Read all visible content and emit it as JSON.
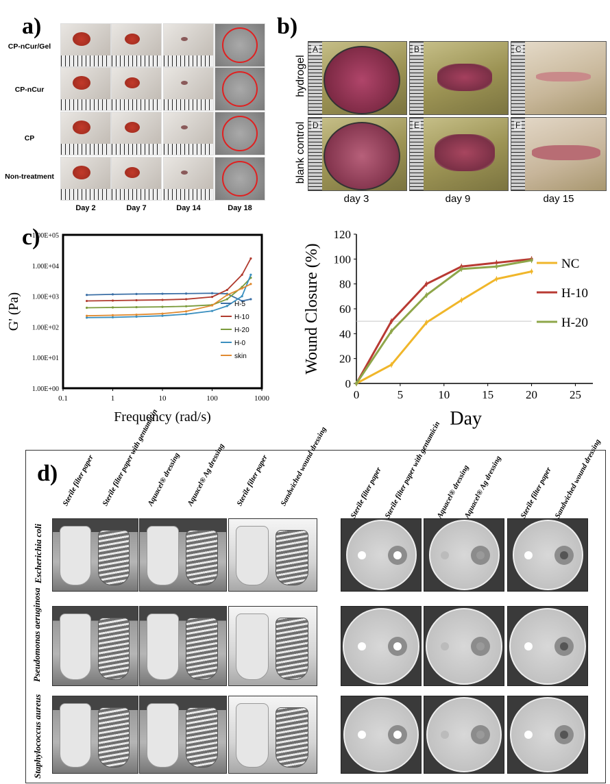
{
  "panel_labels": {
    "a": "a)",
    "b": "b)",
    "c": "c)",
    "d": "d)"
  },
  "panel_a": {
    "rows": [
      "CP-nCur/Gel",
      "CP-nCur",
      "CP",
      "Non-treatment"
    ],
    "days": [
      "Day 2",
      "Day 7",
      "Day 14",
      "Day 18"
    ]
  },
  "panel_b": {
    "rows": [
      "hydrogel",
      "blank control"
    ],
    "days": [
      "day 3",
      "day 9",
      "day 15"
    ],
    "letters": [
      "A",
      "B",
      "C",
      "D",
      "E",
      "F"
    ]
  },
  "panel_d": {
    "tube_headers": [
      "Sterile filter paper",
      "Sterile filter paper with gentamicin",
      "Aquacel® dressing",
      "Aquacel® Ag dressing",
      "Sterile filter paper",
      "Sandwiched wound dressing"
    ],
    "plate_headers": [
      "Sterile filter paper",
      "Sterile filter paper with gentamicin",
      "Aquacel® dressing",
      "Aquacel® Ag dressing",
      "Sterile filter paper",
      "Sandwiched wound dressing"
    ],
    "organisms": [
      "Escherichia coli",
      "Pseudomonas aeruginosa",
      "Staphylococcus aureus"
    ]
  },
  "chart_data": [
    {
      "type": "line",
      "yscale": "log",
      "xscale": "log",
      "xlabel": "Frequency (rad/s)",
      "ylabel": "G' (Pa)",
      "x_ticks": [
        "0.1",
        "1",
        "10",
        "100",
        "1000"
      ],
      "y_ticks": [
        "1.00E+00",
        "1.00E+01",
        "1.00E+02",
        "1.00E+03",
        "1.00E+04",
        "1.00E+05"
      ],
      "xlim": [
        0.1,
        1000
      ],
      "ylim": [
        1,
        100000
      ],
      "legend": [
        "H-5",
        "H-10",
        "H-20",
        "H-0",
        "skin"
      ],
      "colors": {
        "H-5": "#3a6ea5",
        "H-10": "#b03a2e",
        "H-20": "#7a9a3a",
        "H-0": "#3a8fbf",
        "skin": "#e08a30"
      },
      "series": [
        {
          "name": "H-5",
          "x": [
            0.3,
            1,
            3,
            10,
            30,
            100,
            200,
            400,
            600
          ],
          "values": [
            1100,
            1150,
            1180,
            1200,
            1220,
            1250,
            1200,
            700,
            800
          ]
        },
        {
          "name": "H-10",
          "x": [
            0.3,
            1,
            3,
            10,
            30,
            100,
            200,
            400,
            600
          ],
          "values": [
            700,
            720,
            740,
            760,
            800,
            950,
            1600,
            5000,
            17000
          ]
        },
        {
          "name": "H-20",
          "x": [
            0.3,
            1,
            3,
            10,
            30,
            100,
            200,
            400,
            600
          ],
          "values": [
            420,
            430,
            440,
            450,
            470,
            520,
            800,
            2000,
            4000
          ]
        },
        {
          "name": "H-0",
          "x": [
            0.3,
            1,
            3,
            10,
            30,
            100,
            200,
            400,
            600
          ],
          "values": [
            200,
            205,
            215,
            230,
            260,
            330,
            480,
            1000,
            5000
          ]
        },
        {
          "name": "skin",
          "x": [
            0.3,
            1,
            3,
            10,
            30,
            100,
            200,
            400,
            600
          ],
          "values": [
            230,
            240,
            250,
            270,
            320,
            500,
            1100,
            1800,
            2500
          ]
        }
      ]
    },
    {
      "type": "line",
      "xlabel": "Day",
      "ylabel": "Wound Closure (%)",
      "x_ticks": [
        "0",
        "5",
        "10",
        "15",
        "20",
        "25"
      ],
      "y_ticks": [
        "0",
        "20",
        "40",
        "60",
        "80",
        "100",
        "120"
      ],
      "xlim": [
        0,
        27
      ],
      "ylim": [
        0,
        120
      ],
      "reference_line": 50,
      "legend": [
        "NC",
        "H-10",
        "H-20"
      ],
      "colors": {
        "NC": "#f0b62a",
        "H-10": "#b83a33",
        "H-20": "#8ea64a"
      },
      "series": [
        {
          "name": "NC",
          "x": [
            0,
            4,
            8,
            12,
            16,
            20
          ],
          "values": [
            0,
            15,
            49,
            67,
            84,
            90
          ]
        },
        {
          "name": "H-10",
          "x": [
            0,
            4,
            8,
            12,
            16,
            20
          ],
          "values": [
            0,
            50,
            80,
            94,
            97,
            100
          ]
        },
        {
          "name": "H-20",
          "x": [
            0,
            4,
            8,
            12,
            16,
            20
          ],
          "values": [
            0,
            42,
            71,
            92,
            94,
            99
          ]
        }
      ]
    }
  ]
}
